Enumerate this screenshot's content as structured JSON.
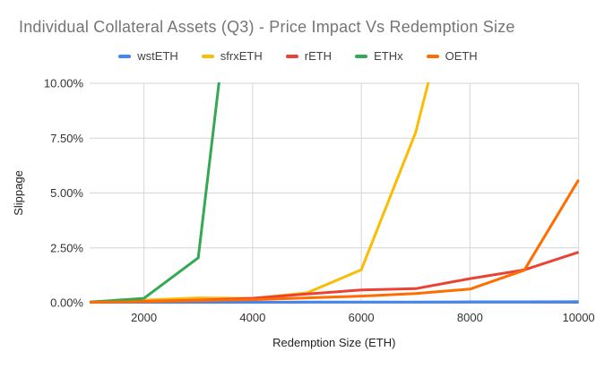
{
  "title": "Individual Collateral Assets (Q3) - Price Impact Vs Redemption Size",
  "chart_data": {
    "type": "line",
    "title": "Individual Collateral Assets (Q3) - Price Impact Vs Redemption Size",
    "xlabel": "Redemption Size (ETH)",
    "ylabel": "Slippage",
    "xlim": [
      1000,
      10000
    ],
    "ylim": [
      0,
      10
    ],
    "grid": true,
    "legend_position": "top",
    "x": [
      1000,
      2000,
      3000,
      4000,
      5000,
      6000,
      7000,
      8000,
      9000,
      10000
    ],
    "x_ticks": {
      "values": [
        2000,
        4000,
        6000,
        8000,
        10000
      ],
      "labels": [
        "2000",
        "4000",
        "6000",
        "8000",
        "10000"
      ]
    },
    "y_ticks": {
      "values": [
        0,
        2.5,
        5,
        7.5,
        10
      ],
      "labels": [
        "0.00%",
        "2.50%",
        "5.00%",
        "7.50%",
        "10.00%"
      ]
    },
    "y_unit": "percent",
    "series": [
      {
        "name": "wstETH",
        "color": "#4285F4",
        "values": [
          0.02,
          0.02,
          0.02,
          0.02,
          0.03,
          0.03,
          0.03,
          0.04,
          0.04,
          0.05
        ]
      },
      {
        "name": "sfrxETH",
        "color": "#FBBC04",
        "values": [
          0.04,
          0.12,
          0.22,
          0.2,
          0.45,
          1.5,
          7.75,
          17.5,
          null,
          null
        ]
      },
      {
        "name": "rETH",
        "color": "#EA4335",
        "values": [
          0.02,
          0.06,
          0.12,
          0.2,
          0.4,
          0.58,
          0.64,
          1.1,
          1.5,
          2.3
        ]
      },
      {
        "name": "ETHx",
        "color": "#34A853",
        "values": [
          0.03,
          0.2,
          2.05,
          23.0,
          null,
          null,
          null,
          null,
          null,
          null
        ]
      },
      {
        "name": "OETH",
        "color": "#FF6D01",
        "values": [
          0.02,
          0.05,
          0.1,
          0.14,
          0.22,
          0.3,
          0.42,
          0.62,
          1.48,
          5.6
        ]
      }
    ],
    "colors": {
      "grid_line": "#d6d6d6",
      "baseline": "#333333",
      "title_text": "#757575",
      "tick_text": "#333333",
      "legend_text": "#424242",
      "background": "#ffffff"
    }
  }
}
